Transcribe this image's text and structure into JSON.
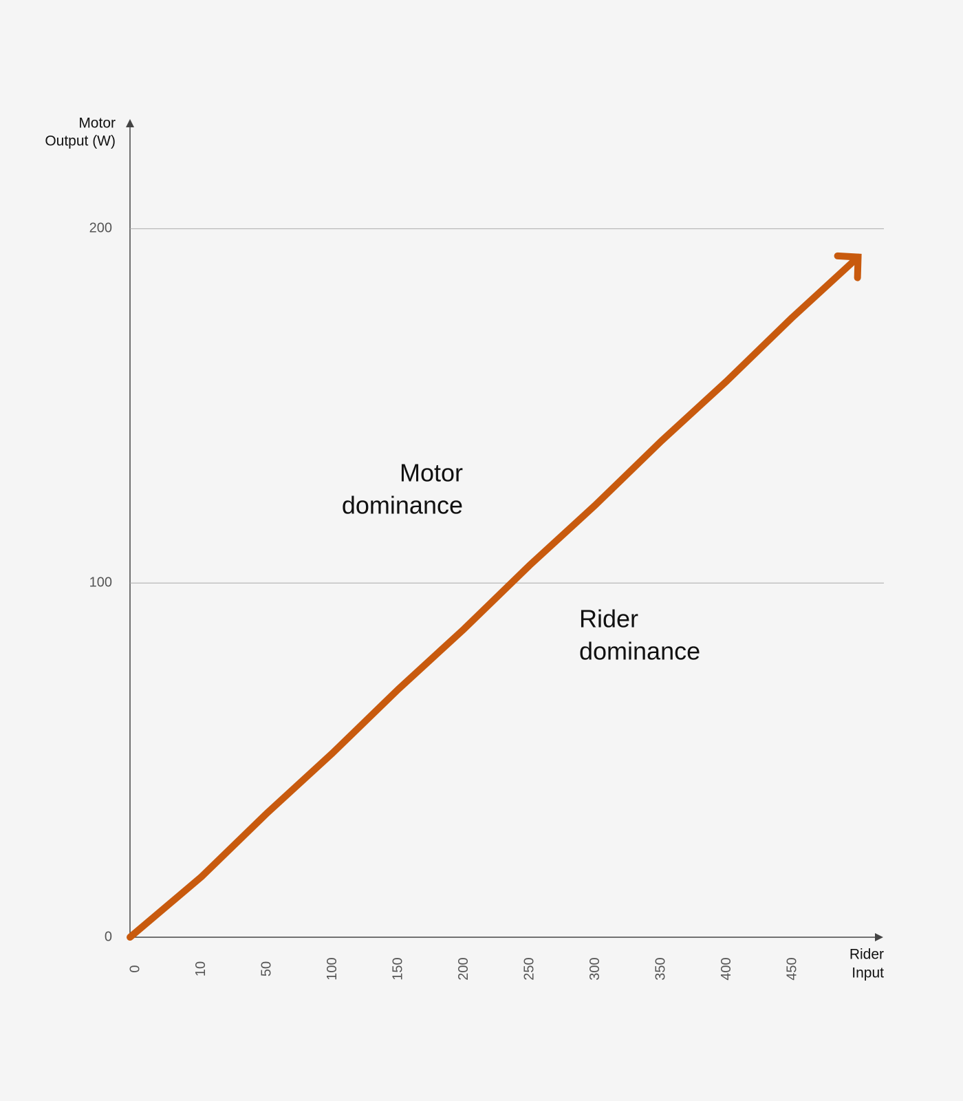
{
  "chart_data": {
    "type": "line",
    "y_label": [
      "Motor",
      "Output (W)"
    ],
    "x_label": [
      "Rider",
      "Input"
    ],
    "annotations": [
      [
        "Motor",
        "dominance"
      ],
      [
        "Rider",
        "dominance"
      ]
    ],
    "categories": [
      "0",
      "10",
      "50",
      "100",
      "150",
      "200",
      "250",
      "300",
      "350",
      "400",
      "450",
      null
    ],
    "series": [
      {
        "color": "#c85a0e",
        "values": [
          0,
          17,
          35,
          52,
          70,
          87,
          105,
          122,
          140,
          157,
          175,
          192
        ]
      }
    ],
    "ylim": [
      0,
      230
    ],
    "yticks": [
      0,
      100,
      200
    ],
    "grid": true
  }
}
